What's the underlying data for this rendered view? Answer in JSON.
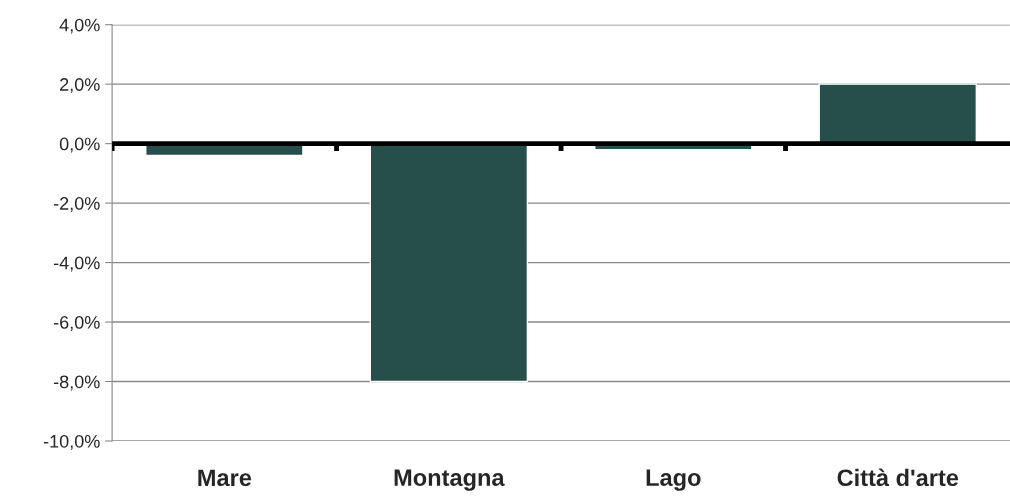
{
  "chart_data": {
    "type": "bar",
    "categories": [
      "Mare",
      "Montagna",
      "Lago",
      "Città d'arte"
    ],
    "values": [
      -0.4,
      -8.0,
      -0.2,
      2.0
    ],
    "color": "#264f4c",
    "ylim": [
      -10,
      4
    ],
    "yticks": [
      {
        "value": -10,
        "label": "-10,0%"
      },
      {
        "value": -8,
        "label": "-8,0%"
      },
      {
        "value": -6,
        "label": "-6,0%"
      },
      {
        "value": -4,
        "label": "-4,0%"
      },
      {
        "value": -2,
        "label": "-2,0%"
      },
      {
        "value": 0,
        "label": "0,0%"
      },
      {
        "value": 2,
        "label": "2,0%"
      },
      {
        "value": 4,
        "label": "4,0%"
      }
    ],
    "grid": "y",
    "legend": false
  }
}
